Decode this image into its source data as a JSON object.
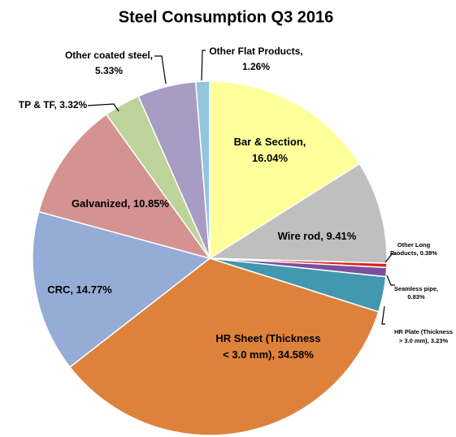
{
  "chart_data": {
    "type": "pie",
    "title": "Steel Consumption Q3 2016",
    "labels": [
      [
        "Bar & Section,",
        "16.04%"
      ],
      [
        "Wire rod, 9.41%"
      ],
      [
        "Other Long",
        "Products, 0.38%"
      ],
      [
        "Seamless pipe,",
        "0.83%"
      ],
      [
        "HR Plate (Thickness",
        "> 3.0 mm), 3.23%"
      ],
      [
        "HR Sheet (Thickness",
        "< 3.0 mm), 34.58%"
      ],
      [
        "CRC, 14.77%"
      ],
      [
        "Galvanized, 10.85%"
      ],
      [
        "TP & TF, 3.32%"
      ],
      [
        "Other coated steel,",
        "5.33%"
      ],
      [
        "Other Flat Products,",
        "1.26%"
      ]
    ],
    "values": [
      16.04,
      9.41,
      0.38,
      0.83,
      3.23,
      34.58,
      14.77,
      10.85,
      3.32,
      5.33,
      1.26
    ],
    "colors": [
      "#FFFF99",
      "#BFBFBF",
      "#E0201B",
      "#7B4F9D",
      "#4298AE",
      "#DE823B",
      "#95ACD6",
      "#D49290",
      "#BCD39A",
      "#A89CC4",
      "#92C5DE"
    ]
  }
}
